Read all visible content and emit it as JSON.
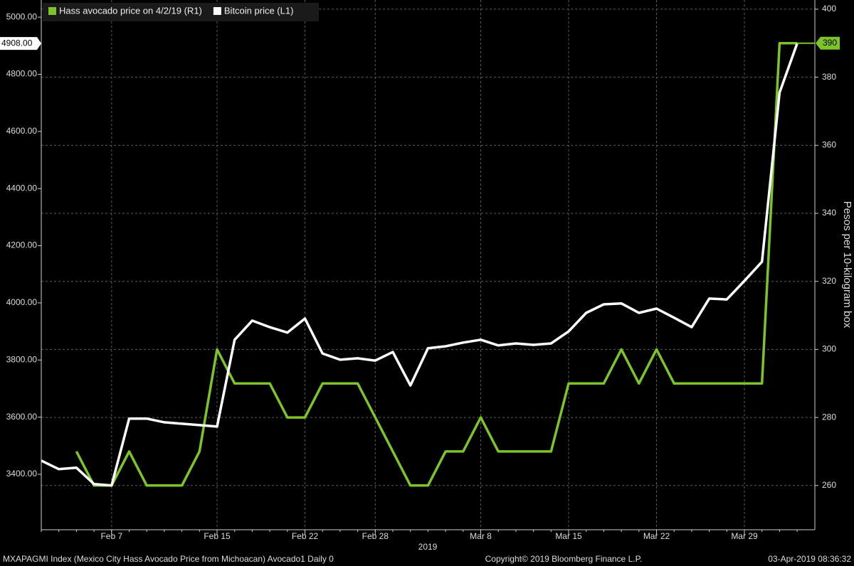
{
  "chart_data": {
    "type": "line",
    "categories": [
      null,
      null,
      null,
      null,
      "Feb 7",
      null,
      null,
      null,
      null,
      null,
      "Feb 15",
      null,
      null,
      null,
      null,
      "Feb 22",
      null,
      null,
      null,
      "Feb 28",
      null,
      null,
      null,
      null,
      null,
      "Mar 8",
      null,
      null,
      null,
      null,
      "Mar 15",
      null,
      null,
      null,
      null,
      "Mar 22",
      null,
      null,
      null,
      null,
      "Mar 29",
      null,
      null,
      null
    ],
    "x_axis_label": "2019",
    "y2_axis_label": "Pesos per 10-kilogram box",
    "footer_left": "MXAPAGMI Index (Mexico City Hass Avocado Price from Michoacan) Avocado1  Daily 0",
    "footer_center": "Copyright© 2019 Bloomberg Finance L.P.",
    "footer_right": "03-Apr-2019 08:36:32",
    "series": [
      {
        "name": "Hass avocado price on 4/2/19 (R1)",
        "color": "#7dc42a",
        "axis": "y2",
        "values": [
          null,
          null,
          270,
          260,
          260,
          270,
          260,
          260,
          260,
          270,
          300,
          290,
          290,
          290,
          280,
          280,
          290,
          290,
          290,
          280,
          270,
          260,
          260,
          270,
          270,
          280,
          270,
          270,
          270,
          270,
          290,
          290,
          290,
          300,
          290,
          300,
          290,
          290,
          290,
          290,
          290,
          290,
          390,
          390
        ]
      },
      {
        "name": "Bitcoin price (L1)",
        "color": "#ffffff",
        "axis": "y",
        "values": [
          3448,
          3418,
          3423,
          3366,
          3361,
          3595,
          3595,
          3582,
          3577,
          3572,
          3567,
          3871,
          3938,
          3915,
          3896,
          3945,
          3823,
          3801,
          3806,
          3798,
          3828,
          3711,
          3841,
          3848,
          3861,
          3871,
          3851,
          3858,
          3853,
          3858,
          3900,
          3965,
          3995,
          3998,
          3965,
          3980,
          3948,
          3915,
          4015,
          4012,
          4077,
          4144,
          4736,
          4908
        ],
        "value_labels": [
          null,
          null,
          null,
          null,
          null,
          null,
          null,
          null,
          null,
          null,
          null,
          null,
          null,
          null,
          null,
          null,
          null,
          null,
          null,
          null,
          null,
          null,
          null,
          null,
          null,
          null,
          null,
          null,
          null,
          null,
          null,
          null,
          null,
          null,
          null,
          null,
          null,
          null,
          null,
          null,
          null,
          null,
          null,
          "4908.00"
        ]
      }
    ],
    "ylim": [
      3206,
      5060
    ],
    "yticks": [
      {
        "value": 3400,
        "label": "3400.00"
      },
      {
        "value": 3600,
        "label": "3600.00"
      },
      {
        "value": 3800,
        "label": "3800.00"
      },
      {
        "value": 4000,
        "label": "4000.00"
      },
      {
        "value": 4200,
        "label": "4200.00"
      },
      {
        "value": 4400,
        "label": "4400.00"
      },
      {
        "value": 4600,
        "label": "4600.00"
      },
      {
        "value": 4800,
        "label": "4800.00"
      },
      {
        "value": 5000,
        "label": "5000.00"
      }
    ],
    "y2lim": [
      247,
      402.7
    ],
    "y2ticks": [
      260,
      280,
      300,
      320,
      340,
      360,
      380,
      400
    ],
    "grid": true,
    "legend": "top-left"
  }
}
